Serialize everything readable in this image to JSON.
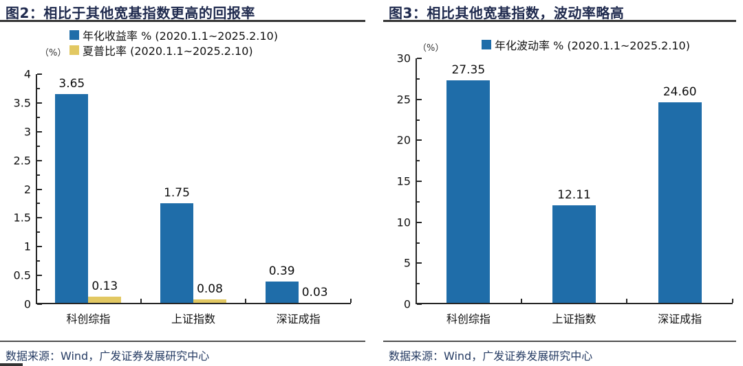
{
  "page": {
    "background": "#ffffff"
  },
  "colors": {
    "bar_blue": "#1F6DA9",
    "bar_yellow": "#E2C862",
    "title_navy": "#1F2A4E",
    "source_navy": "#253B63",
    "axis": "#262626"
  },
  "figures": [
    {
      "title": "图2：相比于其他宽基指数更高的回报率",
      "y_unit": "（%）",
      "source": "数据来源：Wind，广发证券发展研究中心"
    },
    {
      "title": "图3：相比其他宽基指数，波动率略高",
      "y_unit": "（%）",
      "source": "数据来源：Wind，广发证券发展研究中心"
    }
  ],
  "chart_data": [
    {
      "type": "bar",
      "title": "图2：相比于其他宽基指数更高的回报率",
      "categories": [
        "科创综指",
        "上证指数",
        "深证成指"
      ],
      "series": [
        {
          "name": "年化收益率 % (2020.1.1~2025.2.10)",
          "color": "#1F6DA9",
          "values": [
            3.65,
            1.75,
            0.39
          ],
          "labels": [
            "3.65",
            "1.75",
            "0.39"
          ]
        },
        {
          "name": "夏普比率 (2020.1.1~2025.2.10)",
          "color": "#E2C862",
          "values": [
            0.13,
            0.08,
            0.03
          ],
          "labels": [
            "0.13",
            "0.08",
            "0.03"
          ]
        }
      ],
      "xlabel": "",
      "ylabel": "（%）",
      "ylim": [
        0,
        4
      ],
      "ytick_labels": [
        "0",
        "0.5",
        "1",
        "1.5",
        "2",
        "2.5",
        "3",
        "3.5",
        "4"
      ],
      "minor_ticks_between": 1,
      "legend_position": "top",
      "grid": false,
      "source": "数据来源：Wind，广发证券发展研究中心"
    },
    {
      "type": "bar",
      "title": "图3：相比其他宽基指数，波动率略高",
      "categories": [
        "科创综指",
        "上证指数",
        "深证成指"
      ],
      "series": [
        {
          "name": "年化波动率 % (2020.1.1~2025.2.10)",
          "color": "#1F6DA9",
          "values": [
            27.35,
            12.11,
            24.6
          ],
          "labels": [
            "27.35",
            "12.11",
            "24.60"
          ]
        }
      ],
      "xlabel": "",
      "ylabel": "（%）",
      "ylim": [
        0,
        30
      ],
      "ytick_labels": [
        "0",
        "5",
        "10",
        "15",
        "20",
        "25",
        "30"
      ],
      "minor_ticks_between": 1,
      "legend_position": "top",
      "grid": false,
      "source": "数据来源：Wind，广发证券发展研究中心"
    }
  ]
}
